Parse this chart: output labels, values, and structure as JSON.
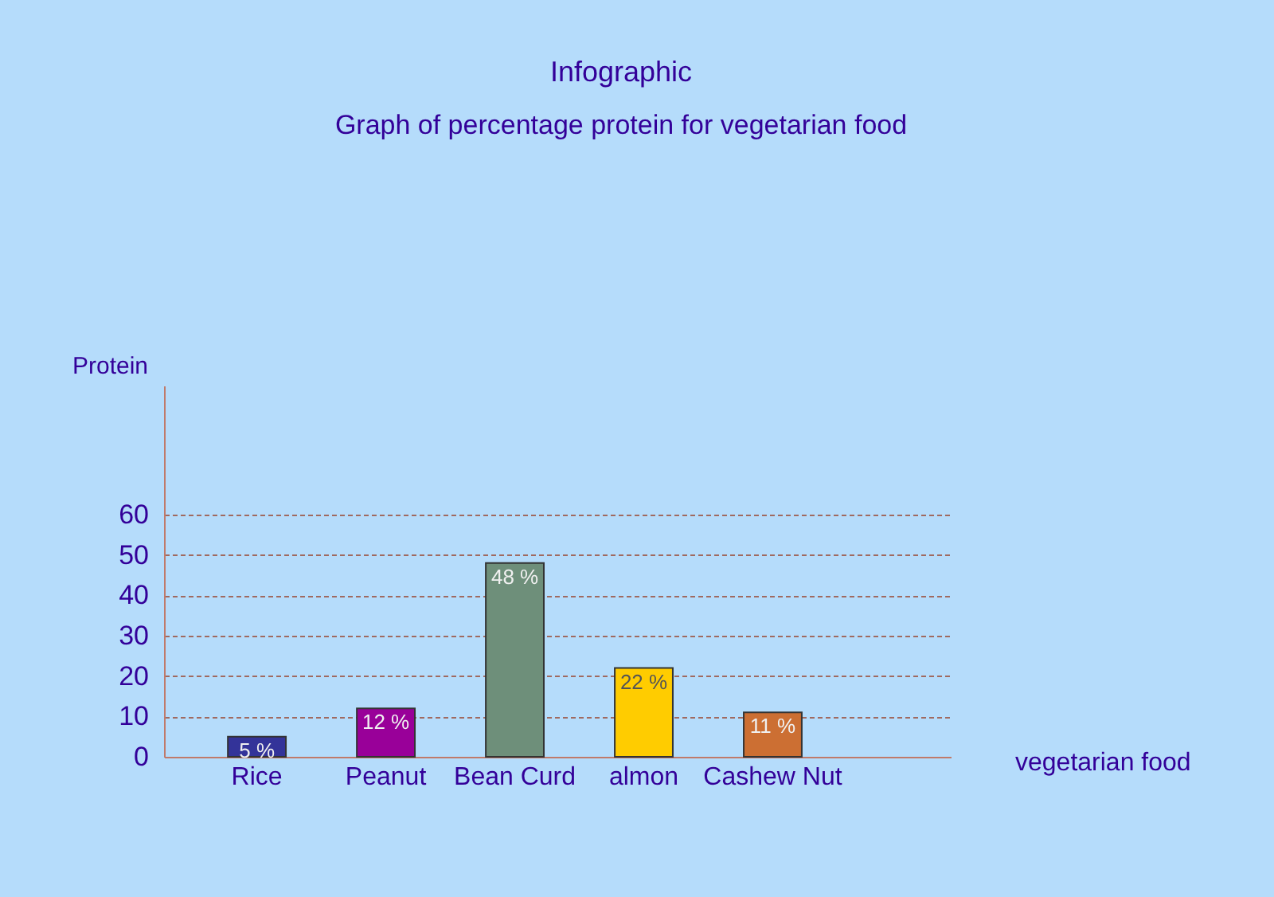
{
  "chart_data": {
    "type": "bar",
    "title": "Infographic",
    "subtitle": "Graph of percentage protein for vegetarian food",
    "xlabel": "vegetarian food",
    "ylabel": "Protein",
    "categories": [
      "Rice",
      "Peanut",
      "Bean Curd",
      "almon",
      "Cashew Nut"
    ],
    "values": [
      5,
      12,
      48,
      22,
      11
    ],
    "colors": [
      "#333399",
      "#990099",
      "#6e8f7a",
      "#ffcc00",
      "#cc6f33"
    ],
    "value_labels": [
      "5 %",
      "12 %",
      "48 %",
      "22 %",
      "11 %"
    ],
    "ylim": [
      0,
      92
    ],
    "yticks": [
      0,
      10,
      20,
      30,
      40,
      50,
      60
    ],
    "grid": "y"
  }
}
